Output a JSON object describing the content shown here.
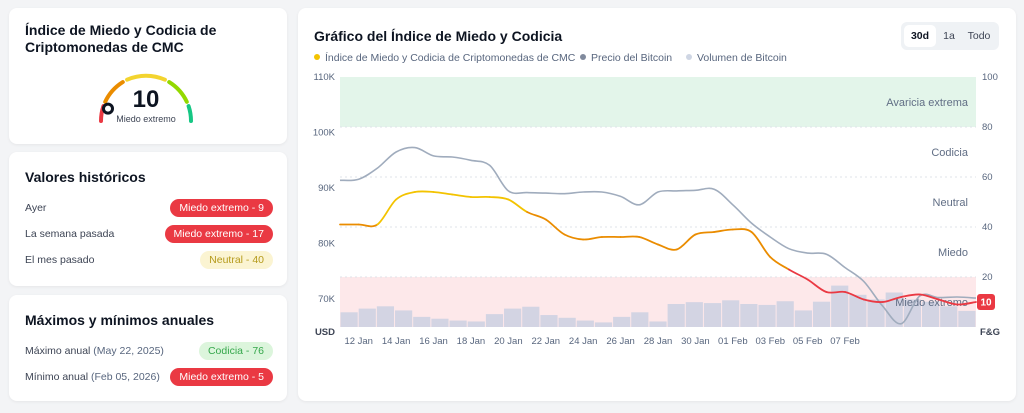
{
  "gauge": {
    "title_line1": "Índice de Miedo y Codicia de",
    "title_line2": "Criptomonedas de CMC",
    "value": "10",
    "label": "Miedo extremo",
    "level": 0.1
  },
  "historical": {
    "title": "Valores históricos",
    "rows": [
      {
        "label": "Ayer",
        "badge": "Miedo extremo - 9",
        "kind": "red"
      },
      {
        "label": "La semana pasada",
        "badge": "Miedo extremo - 17",
        "kind": "red"
      },
      {
        "label": "El mes pasado",
        "badge": "Neutral - 40",
        "kind": "neutral"
      }
    ]
  },
  "yearly": {
    "title": "Máximos y mínimos anuales",
    "rows": [
      {
        "label": "Máximo anual",
        "date": "(May 22, 2025)",
        "badge": "Codicia - 76",
        "kind": "green"
      },
      {
        "label": "Mínimo anual",
        "date": "(Feb 05, 2026)",
        "badge": "Miedo extremo - 5",
        "kind": "red"
      }
    ]
  },
  "chart_panel": {
    "title": "Gráfico del Índice de Miedo y Codicia",
    "ranges": [
      "30d",
      "1a",
      "Todo"
    ],
    "selected_range": "30d",
    "legend": [
      {
        "label": "Índice de Miedo y Codicia de Criptomonedas de CMC",
        "color": "#f3c300"
      },
      {
        "label": "Precio del Bitcoin",
        "color": "#808a9d"
      },
      {
        "label": "Volumen de Bitcoin",
        "color": "#cfd6e4"
      }
    ]
  },
  "chart_data": {
    "type": "line",
    "x_ticks": [
      "12 Jan",
      "14 Jan",
      "16 Jan",
      "18 Jan",
      "20 Jan",
      "22 Jan",
      "24 Jan",
      "26 Jan",
      "28 Jan",
      "30 Jan",
      "01 Feb",
      "03 Feb",
      "05 Feb",
      "07 Feb"
    ],
    "left_axis": {
      "unit_label": "USD",
      "ticks": [
        "70K",
        "80K",
        "90K",
        "100K",
        "110K"
      ],
      "ylim": [
        65000,
        110000
      ]
    },
    "right_axis": {
      "unit_label": "F&G",
      "ticks": [
        "20",
        "40",
        "60",
        "80",
        "100"
      ],
      "ylim": [
        0,
        100
      ]
    },
    "zones": [
      {
        "label": "Avaricia extrema",
        "from": 80,
        "to": 100,
        "color": "#e3f5ea"
      },
      {
        "label": "Codicia",
        "at": 70
      },
      {
        "label": "Neutral",
        "at": 50
      },
      {
        "label": "Miedo",
        "at": 30
      },
      {
        "label": "Miedo extremo",
        "from": 0,
        "to": 20,
        "color": "#fde8ea"
      }
    ],
    "current_value": "10",
    "series": [
      {
        "name": "Índice de Miedo y Codicia de Criptomonedas de CMC",
        "values": [
          41,
          41,
          41,
          51,
          54,
          54,
          53,
          52,
          52,
          51,
          46,
          43,
          37,
          35,
          36,
          36,
          36,
          33,
          31,
          37,
          38,
          39,
          38,
          28,
          23,
          19,
          14,
          14,
          11,
          10,
          12,
          13,
          11,
          9,
          10
        ]
      },
      {
        "name": "Precio del Bitcoin",
        "values": [
          91400,
          91600,
          93600,
          96500,
          97300,
          95800,
          95600,
          95000,
          94100,
          89500,
          89200,
          89100,
          89000,
          89300,
          89300,
          88500,
          87000,
          89300,
          89500,
          89600,
          89800,
          87000,
          83700,
          81200,
          79100,
          78300,
          78100,
          75700,
          73200,
          68800,
          65600,
          70600,
          70300,
          70400,
          70200
        ]
      },
      {
        "name": "Volumen de Bitcoin",
        "values": [
          32,
          40,
          45,
          36,
          22,
          18,
          14,
          12,
          28,
          40,
          44,
          26,
          20,
          14,
          10,
          22,
          32,
          12,
          50,
          54,
          52,
          58,
          50,
          48,
          56,
          36,
          55,
          90,
          70,
          60,
          75,
          60,
          55,
          45,
          35
        ]
      }
    ]
  }
}
